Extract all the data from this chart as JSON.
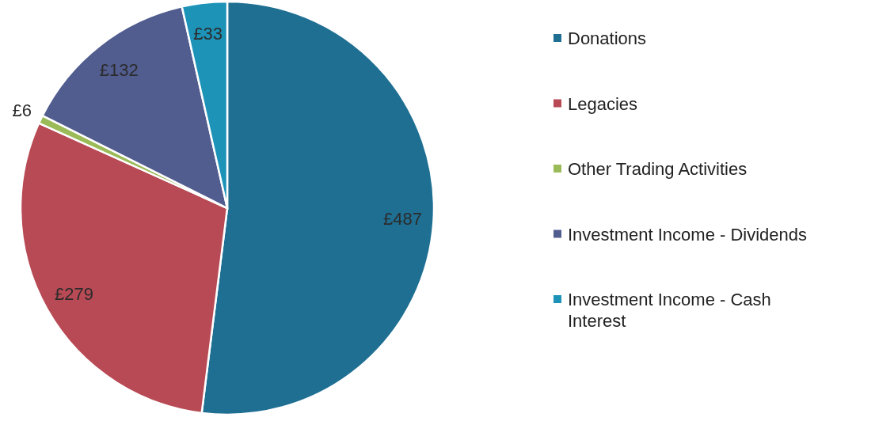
{
  "chart_data": {
    "type": "pie",
    "categories": [
      "Donations",
      "Legacies",
      "Other Trading Activities",
      "Investment Income - Dividends",
      "Investment Income - Cash Interest"
    ],
    "values": [
      487,
      279,
      6,
      132,
      33
    ],
    "colors": [
      "#1f6f93",
      "#b84a55",
      "#9bbb59",
      "#515c8f",
      "#1d93b8"
    ],
    "value_labels": [
      "£487",
      "£279",
      "£6",
      "£132",
      "£33"
    ],
    "legend": "right"
  }
}
